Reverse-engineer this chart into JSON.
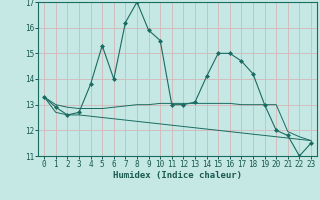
{
  "xlabel": "Humidex (Indice chaleur)",
  "background_color": "#c5e8e5",
  "grid_color": "#d4b8b8",
  "line_color": "#1a6b60",
  "x_values": [
    0,
    1,
    2,
    3,
    4,
    5,
    6,
    7,
    8,
    9,
    10,
    11,
    12,
    13,
    14,
    15,
    16,
    17,
    18,
    19,
    20,
    21,
    22,
    23
  ],
  "series1": [
    13.3,
    12.9,
    12.6,
    12.7,
    13.8,
    15.3,
    14.0,
    16.2,
    17.0,
    15.9,
    15.5,
    13.0,
    13.0,
    13.1,
    14.1,
    15.0,
    15.0,
    14.7,
    14.2,
    13.0,
    12.0,
    11.8,
    11.0,
    11.5
  ],
  "series2": [
    13.3,
    12.7,
    12.6,
    12.6,
    12.55,
    12.5,
    12.45,
    12.4,
    12.35,
    12.3,
    12.25,
    12.2,
    12.15,
    12.1,
    12.05,
    12.0,
    11.95,
    11.9,
    11.85,
    11.8,
    11.75,
    11.7,
    11.65,
    11.6
  ],
  "series3": [
    13.3,
    13.0,
    12.9,
    12.85,
    12.85,
    12.85,
    12.9,
    12.95,
    13.0,
    13.0,
    13.05,
    13.05,
    13.05,
    13.05,
    13.05,
    13.05,
    13.05,
    13.0,
    13.0,
    13.0,
    13.0,
    11.95,
    11.75,
    11.6
  ],
  "ylim": [
    11,
    17
  ],
  "xlim": [
    -0.5,
    23.5
  ],
  "yticks": [
    11,
    12,
    13,
    14,
    15,
    16,
    17
  ],
  "xticks": [
    0,
    1,
    2,
    3,
    4,
    5,
    6,
    7,
    8,
    9,
    10,
    11,
    12,
    13,
    14,
    15,
    16,
    17,
    18,
    19,
    20,
    21,
    22,
    23
  ],
  "xlabel_fontsize": 6.5,
  "tick_fontsize": 5.5
}
